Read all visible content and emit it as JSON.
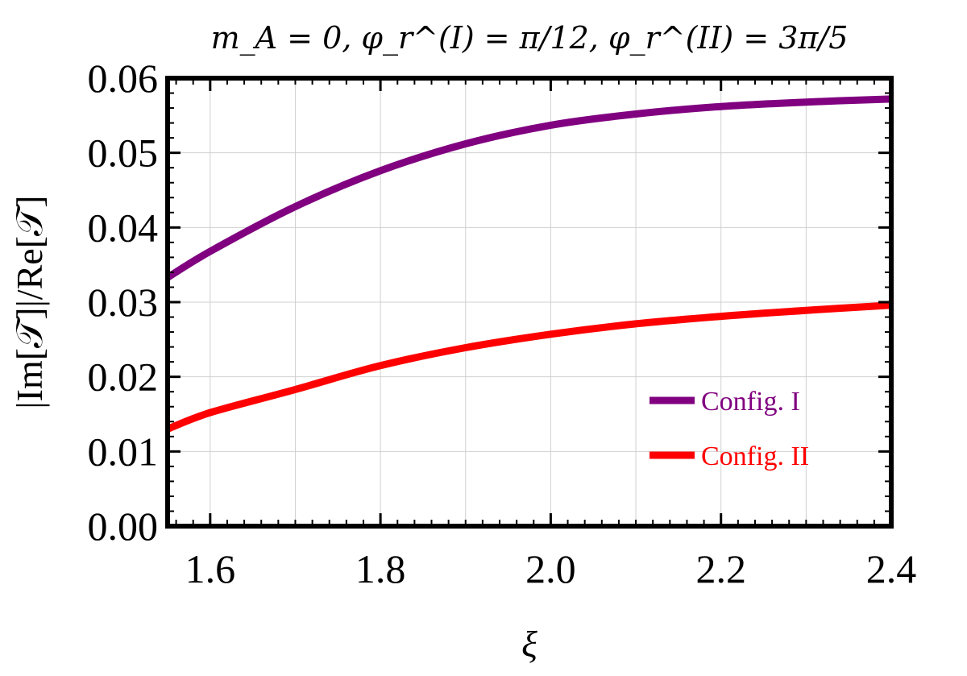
{
  "chart_data": {
    "type": "line",
    "title": "m_A = 0,  φ_r^(I) = π/12,  φ_r^(II) = 3π/5",
    "xlabel": "ξ",
    "ylabel": "|Im[𝒯]|/Re[𝒯]",
    "xlim": [
      1.55,
      2.4
    ],
    "ylim": [
      0,
      0.06
    ],
    "x_ticks": [
      "1.6",
      "1.8",
      "2.0",
      "2.2",
      "2.4"
    ],
    "y_ticks": [
      "0.00",
      "0.01",
      "0.02",
      "0.03",
      "0.04",
      "0.05",
      "0.06"
    ],
    "grid": true,
    "legend_position": "bottom-right",
    "series": [
      {
        "name": "Config. I",
        "color": "#800080",
        "x": [
          1.55,
          1.6,
          1.7,
          1.8,
          1.9,
          2.0,
          2.1,
          2.2,
          2.3,
          2.4
        ],
        "y": [
          0.0333,
          0.0368,
          0.0428,
          0.0476,
          0.0512,
          0.0537,
          0.0552,
          0.0562,
          0.0568,
          0.0572
        ]
      },
      {
        "name": "Config. II",
        "color": "#ff0000",
        "x": [
          1.55,
          1.6,
          1.7,
          1.8,
          1.9,
          2.0,
          2.1,
          2.2,
          2.3,
          2.4
        ],
        "y": [
          0.013,
          0.0152,
          0.0183,
          0.0215,
          0.0239,
          0.0257,
          0.0271,
          0.0281,
          0.0289,
          0.0296
        ]
      }
    ]
  }
}
